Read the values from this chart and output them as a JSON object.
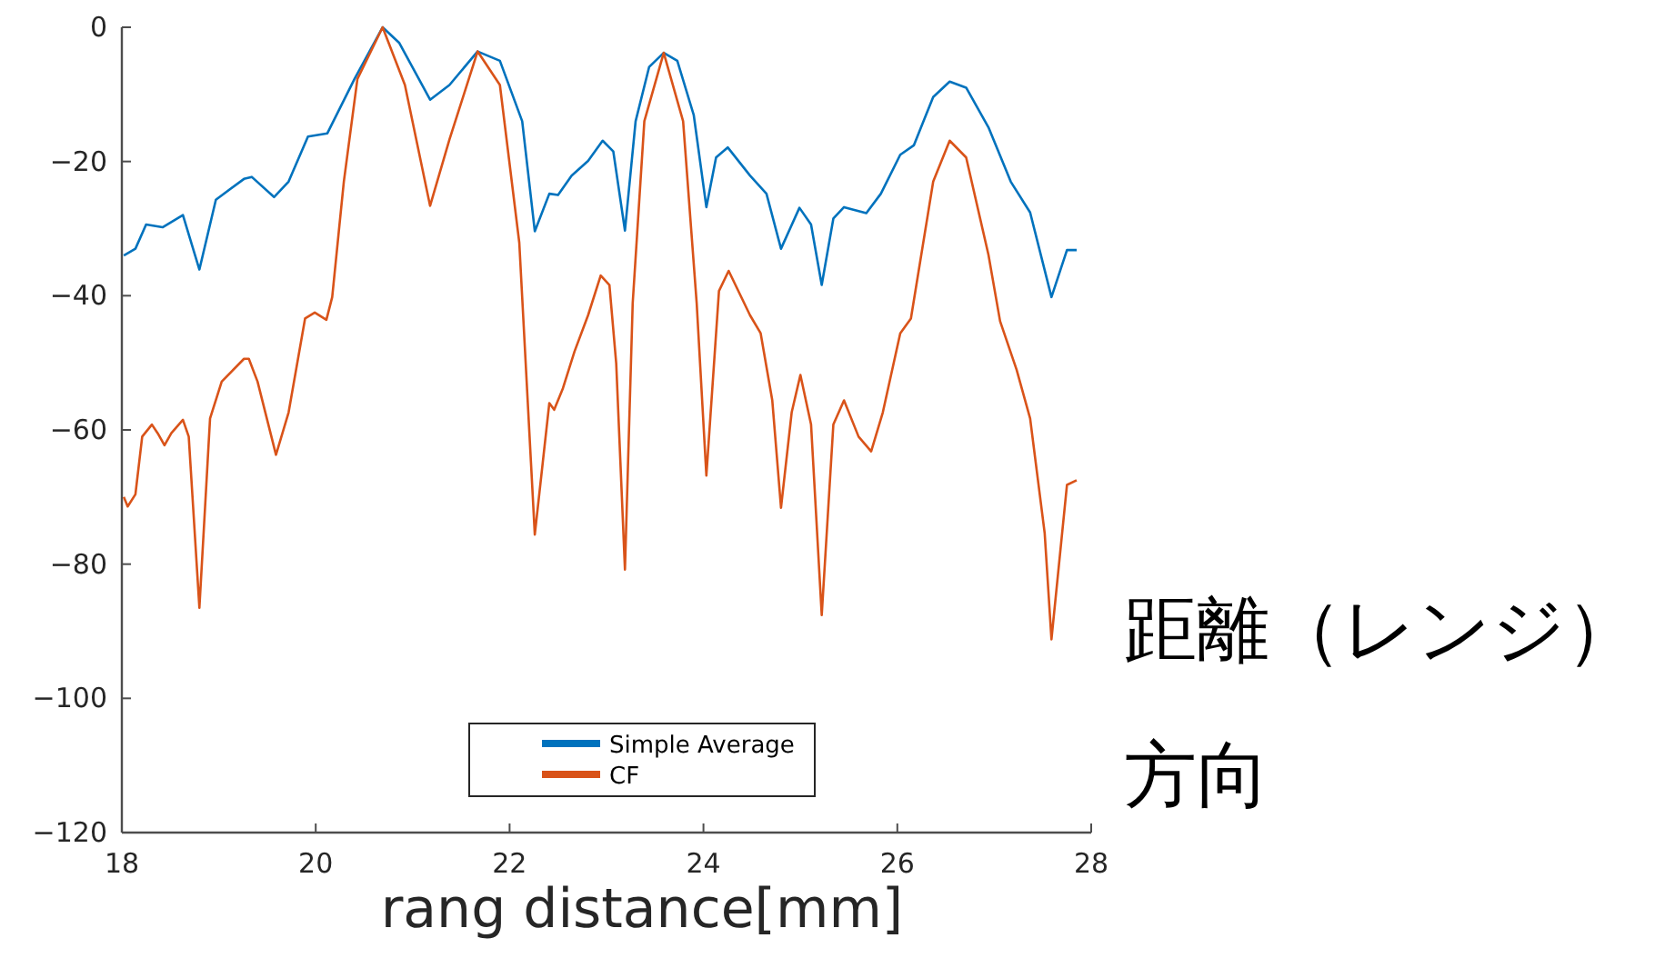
{
  "chart_data": {
    "type": "line",
    "xlabel": "rang distance[mm]",
    "xlim": [
      18,
      28
    ],
    "xticks": [
      18,
      20,
      22,
      24,
      26,
      28
    ],
    "ylim": [
      -120,
      0
    ],
    "yticks": [
      -120,
      -100,
      -80,
      -60,
      -40,
      -20,
      0
    ],
    "grid": false,
    "legend": "bottom",
    "marker": "none",
    "line_style": "solid",
    "annotations": [
      "距離（レンジ）方向"
    ],
    "series": [
      {
        "name": "Simple Average",
        "color": "#0072bd",
        "x": [
          18.02,
          18.14,
          18.25,
          18.42,
          18.63,
          18.8,
          18.97,
          19.26,
          19.34,
          19.57,
          19.72,
          19.92,
          20.12,
          20.4,
          20.69,
          20.86,
          21.18,
          21.38,
          21.67,
          21.9,
          22.13,
          22.26,
          22.41,
          22.5,
          22.64,
          22.81,
          22.96,
          23.07,
          23.19,
          23.3,
          23.44,
          23.59,
          23.73,
          23.9,
          24.03,
          24.13,
          24.25,
          24.48,
          24.65,
          24.8,
          24.99,
          25.11,
          25.22,
          25.34,
          25.45,
          25.68,
          25.83,
          26.03,
          26.17,
          26.37,
          26.54,
          26.71,
          26.94,
          27.17,
          27.37,
          27.59,
          27.75,
          27.85
        ],
        "values": [
          -34,
          -33,
          -29.4,
          -29.8,
          -28,
          -36.1,
          -25.7,
          -22.6,
          -22.3,
          -25.3,
          -23,
          -16.3,
          -15.8,
          -7.7,
          0,
          -2.3,
          -10.8,
          -8.6,
          -3.6,
          -5,
          -14,
          -30.4,
          -24.8,
          -25,
          -22.1,
          -19.9,
          -16.9,
          -18.5,
          -30.3,
          -14,
          -5.9,
          -3.8,
          -5,
          -13.1,
          -26.8,
          -19.4,
          -17.9,
          -22.1,
          -24.8,
          -33,
          -26.9,
          -29.4,
          -38.4,
          -28.5,
          -26.8,
          -27.7,
          -24.8,
          -19,
          -17.6,
          -10.4,
          -8.1,
          -9,
          -14.9,
          -23,
          -27.6,
          -40.2,
          -33.2,
          -33.2
        ]
      },
      {
        "name": "CF",
        "color": "#d95319",
        "x": [
          18.02,
          18.06,
          18.14,
          18.21,
          18.31,
          18.37,
          18.44,
          18.51,
          18.63,
          18.69,
          18.8,
          18.91,
          19.03,
          19.26,
          19.31,
          19.4,
          19.59,
          19.72,
          19.89,
          19.99,
          20.11,
          20.17,
          20.29,
          20.43,
          20.69,
          20.92,
          21.18,
          21.38,
          21.67,
          21.9,
          22.1,
          22.26,
          22.41,
          22.46,
          22.55,
          22.67,
          22.81,
          22.94,
          23.03,
          23.1,
          23.19,
          23.27,
          23.39,
          23.59,
          23.79,
          23.93,
          24.03,
          24.16,
          24.26,
          24.48,
          24.59,
          24.71,
          24.8,
          24.91,
          25.0,
          25.11,
          25.22,
          25.34,
          25.45,
          25.6,
          25.73,
          25.85,
          26.03,
          26.14,
          26.37,
          26.54,
          26.71,
          26.94,
          27.06,
          27.23,
          27.37,
          27.52,
          27.59,
          27.75,
          27.85
        ],
        "values": [
          -70,
          -71.4,
          -69.6,
          -61,
          -59.2,
          -60.5,
          -62.3,
          -60.5,
          -58.5,
          -61,
          -86.5,
          -58.3,
          -52.8,
          -49.4,
          -49.4,
          -52.8,
          -63.7,
          -57.4,
          -43.4,
          -42.5,
          -43.6,
          -40.2,
          -23,
          -7.7,
          0,
          -8.6,
          -26.6,
          -16.7,
          -3.6,
          -8.6,
          -32.1,
          -75.6,
          -56,
          -57,
          -53.8,
          -48.3,
          -42.9,
          -37,
          -38.4,
          -50.1,
          -80.8,
          -41.1,
          -14,
          -3.8,
          -14,
          -41.1,
          -66.8,
          -39.3,
          -36.3,
          -42.9,
          -45.6,
          -55.6,
          -71.6,
          -57.4,
          -51.8,
          -59.2,
          -87.6,
          -59.2,
          -55.6,
          -61,
          -63.2,
          -57.4,
          -45.6,
          -43.4,
          -23,
          -16.9,
          -19.4,
          -33.9,
          -43.8,
          -51,
          -58.3,
          -75.4,
          -91.2,
          -68.2,
          -67.5
        ]
      }
    ]
  }
}
